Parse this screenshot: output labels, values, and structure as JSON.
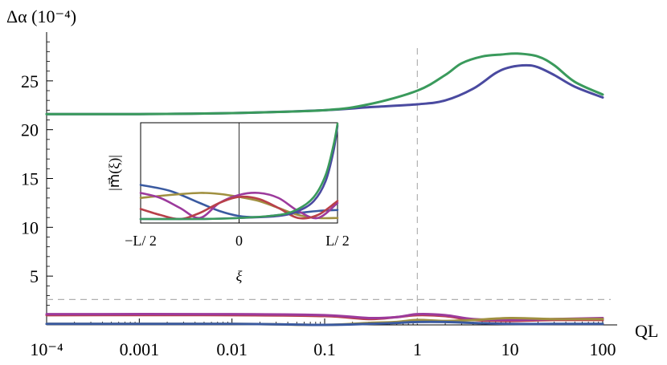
{
  "chart_data": [
    {
      "type": "line",
      "name": "main-plot",
      "xscale": "log",
      "xlim": [
        0.0001,
        100
      ],
      "ylim": [
        0,
        30
      ],
      "xlabel": "QL",
      "ylabel": "Δα (10⁻⁴)",
      "x_ticks": [
        0.0001,
        0.001,
        0.01,
        0.1,
        1,
        10,
        100
      ],
      "x_tick_labels": [
        "10⁻⁴",
        "0.001",
        "0.01",
        "0.1",
        "1",
        "10",
        "100"
      ],
      "y_ticks": [
        5,
        10,
        15,
        20,
        25
      ],
      "y_tick_labels": [
        "5",
        "10",
        "15",
        "20",
        "25"
      ],
      "reference_lines": {
        "vertical_x": 1,
        "horizontal_y": 2.6
      },
      "grid": false,
      "series": [
        {
          "color": "#4a4aa0",
          "x": [
            0.0001,
            0.001,
            0.01,
            0.1,
            0.3,
            1,
            2,
            4,
            7,
            10,
            15,
            20,
            30,
            50,
            100
          ],
          "y": [
            21.6,
            21.6,
            21.7,
            22.0,
            22.3,
            22.6,
            23.0,
            24.2,
            25.8,
            26.4,
            26.6,
            26.4,
            25.6,
            24.4,
            23.3
          ]
        },
        {
          "color": "#3a9a5c",
          "x": [
            0.0001,
            0.001,
            0.01,
            0.1,
            0.3,
            1,
            2,
            3,
            5,
            8,
            12,
            20,
            30,
            50,
            100
          ],
          "y": [
            21.6,
            21.6,
            21.7,
            22.0,
            22.6,
            24.0,
            25.6,
            26.8,
            27.5,
            27.7,
            27.8,
            27.5,
            26.6,
            24.9,
            23.6
          ]
        },
        {
          "color": "#b8404a",
          "x": [
            0.0001,
            0.01,
            0.1,
            0.3,
            0.6,
            1,
            2,
            4,
            10,
            30,
            100
          ],
          "y": [
            1.0,
            1.0,
            0.9,
            0.6,
            0.8,
            1.0,
            0.9,
            0.5,
            0.4,
            0.5,
            0.5
          ]
        },
        {
          "color": "#9c3a9c",
          "x": [
            0.0001,
            0.01,
            0.1,
            0.3,
            0.6,
            1,
            2,
            4,
            10,
            30,
            100
          ],
          "y": [
            1.1,
            1.1,
            1.0,
            0.7,
            0.8,
            1.1,
            1.0,
            0.6,
            0.5,
            0.6,
            0.7
          ]
        },
        {
          "color": "#a09040",
          "x": [
            0.0001,
            0.01,
            0.1,
            0.3,
            0.6,
            1,
            2,
            4,
            10,
            30,
            100
          ],
          "y": [
            0.1,
            0.1,
            0.0,
            0.2,
            0.3,
            0.5,
            0.4,
            0.5,
            0.7,
            0.6,
            0.6
          ]
        },
        {
          "color": "#3a5aa0",
          "x": [
            0.0001,
            0.01,
            0.1,
            0.3,
            0.6,
            1,
            2,
            4,
            10,
            30,
            100
          ],
          "y": [
            0.1,
            0.1,
            0.0,
            0.1,
            0.2,
            0.3,
            0.3,
            0.2,
            0.1,
            0.1,
            0.1
          ]
        }
      ]
    },
    {
      "type": "line",
      "name": "inset",
      "xlabel": "ξ",
      "ylabel": "|m⃗(ξ)|",
      "xlim": [
        -0.5,
        0.5
      ],
      "ylim": [
        0,
        1
      ],
      "x_ticks": [
        -0.5,
        0,
        0.5
      ],
      "x_tick_labels": [
        "−L/ 2",
        "0",
        "L/ 2"
      ],
      "grid": false,
      "series": [
        {
          "color": "#3a5aa0",
          "x": [
            -0.5,
            -0.35,
            -0.2,
            -0.1,
            0.0,
            0.1,
            0.2,
            0.3,
            0.4,
            0.5
          ],
          "y": [
            0.38,
            0.32,
            0.2,
            0.12,
            0.07,
            0.06,
            0.08,
            0.1,
            0.12,
            0.13
          ]
        },
        {
          "color": "#a09040",
          "x": [
            -0.5,
            -0.35,
            -0.2,
            -0.1,
            0.0,
            0.1,
            0.2,
            0.3,
            0.4,
            0.5
          ],
          "y": [
            0.25,
            0.28,
            0.3,
            0.29,
            0.26,
            0.22,
            0.15,
            0.08,
            0.05,
            0.05
          ]
        },
        {
          "color": "#9c3a9c",
          "x": [
            -0.5,
            -0.4,
            -0.3,
            -0.2,
            -0.1,
            0.0,
            0.1,
            0.2,
            0.3,
            0.4,
            0.5
          ],
          "y": [
            0.3,
            0.25,
            0.15,
            0.05,
            0.2,
            0.28,
            0.3,
            0.25,
            0.12,
            0.05,
            0.2
          ]
        },
        {
          "color": "#b8404a",
          "x": [
            -0.5,
            -0.4,
            -0.3,
            -0.2,
            -0.1,
            0.0,
            0.1,
            0.2,
            0.3,
            0.4,
            0.5
          ],
          "y": [
            0.14,
            0.08,
            0.04,
            0.1,
            0.2,
            0.26,
            0.24,
            0.15,
            0.05,
            0.08,
            0.22
          ]
        },
        {
          "color": "#4a4aa0",
          "x": [
            -0.5,
            -0.2,
            0.0,
            0.2,
            0.3,
            0.38,
            0.44,
            0.48,
            0.5
          ],
          "y": [
            0.04,
            0.04,
            0.05,
            0.07,
            0.12,
            0.22,
            0.42,
            0.72,
            0.97
          ]
        },
        {
          "color": "#3a9a5c",
          "x": [
            -0.5,
            -0.2,
            0.0,
            0.2,
            0.3,
            0.38,
            0.44,
            0.48,
            0.5
          ],
          "y": [
            0.04,
            0.04,
            0.05,
            0.08,
            0.14,
            0.26,
            0.48,
            0.78,
            0.99
          ]
        }
      ]
    }
  ]
}
